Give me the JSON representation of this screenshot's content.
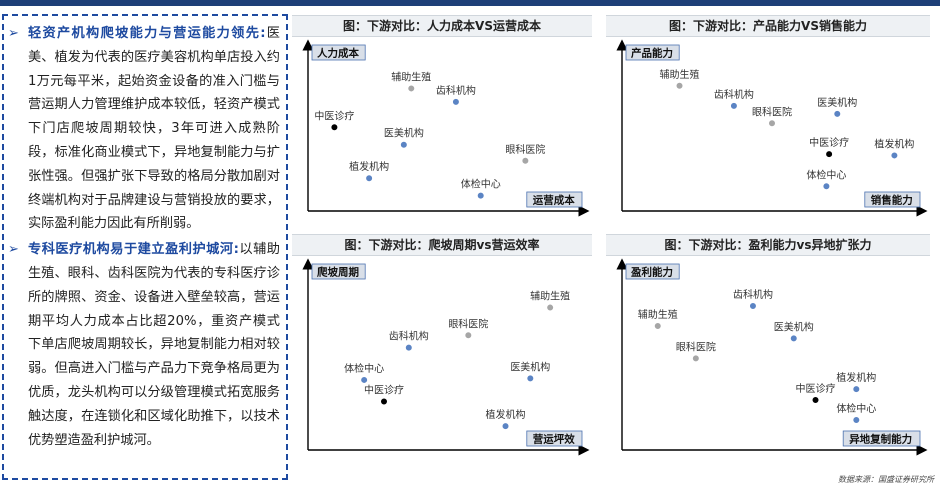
{
  "left": {
    "bullet_mark": "➢",
    "p1_lead": "轻资产机构爬坡能力与营运能力领先:",
    "p1_body": "医美、植发为代表的医疗美容机构单店投入约1万元每平米，起始资金设备的准入门槛与营运期人力管理维护成本较低，轻资产模式下门店爬坡周期较快，3年可进入成熟阶段，标准化商业模式下，异地复制能力与扩张性强。但强扩张下导致的格局分散加剧对终端机构对于品牌建设与营销投放的要求，实际盈利能力因此有所削弱。",
    "p2_lead": "专科医疗机构易于建立盈利护城河:",
    "p2_body": "以辅助生殖、眼科、齿科医院为代表的专科医疗诊所的牌照、资金、设备进入壁垒较高，营运期平均人力成本占比超20%，重资产模式下单店爬坡周期较长，异地复制能力相对较弱。但高进入门槛与产品力下竞争格局更为优质，龙头机构可以分级管理模式拓宽服务触达度，在连锁化和区域化助推下，以技术优势塑造盈利护城河。"
  },
  "source": "数据来源：国盛证券研究所",
  "colors": {
    "blue": "#5b84c4",
    "gray": "#a6a6a6",
    "black": "#000000",
    "tag_bg": "#d9dfe8",
    "tag_border": "#4c72b0"
  },
  "chart_data": [
    {
      "type": "scatter",
      "title": "图：下游对比：人力成本VS运营成本",
      "xlabel": "运营成本",
      "ylabel": "人力成本",
      "xlim": [
        0,
        100
      ],
      "ylim": [
        0,
        100
      ],
      "points": [
        {
          "label": "辅助生殖",
          "x": 36,
          "y": 84,
          "color": "gray"
        },
        {
          "label": "齿科机构",
          "x": 54,
          "y": 74,
          "color": "blue"
        },
        {
          "label": "中医诊疗",
          "x": 5,
          "y": 55,
          "color": "black"
        },
        {
          "label": "医美机构",
          "x": 33,
          "y": 42,
          "color": "blue"
        },
        {
          "label": "眼科医院",
          "x": 82,
          "y": 30,
          "color": "gray"
        },
        {
          "label": "植发机构",
          "x": 19,
          "y": 17,
          "color": "blue"
        },
        {
          "label": "体检中心",
          "x": 64,
          "y": 4,
          "color": "blue"
        }
      ]
    },
    {
      "type": "scatter",
      "title": "图：下游对比：产品能力VS销售能力",
      "xlabel": "销售能力",
      "ylabel": "产品能力",
      "xlim": [
        0,
        100
      ],
      "ylim": [
        0,
        100
      ],
      "points": [
        {
          "label": "辅助生殖",
          "x": 16,
          "y": 86,
          "color": "gray"
        },
        {
          "label": "齿科机构",
          "x": 36,
          "y": 71,
          "color": "blue"
        },
        {
          "label": "眼科医院",
          "x": 50,
          "y": 58,
          "color": "gray"
        },
        {
          "label": "医美机构",
          "x": 74,
          "y": 65,
          "color": "blue"
        },
        {
          "label": "中医诊疗",
          "x": 71,
          "y": 35,
          "color": "black"
        },
        {
          "label": "植发机构",
          "x": 95,
          "y": 34,
          "color": "blue"
        },
        {
          "label": "体检中心",
          "x": 70,
          "y": 11,
          "color": "blue"
        }
      ]
    },
    {
      "type": "scatter",
      "title": "图：下游对比：爬坡周期vs营运效率",
      "xlabel": "营运坪效",
      "ylabel": "爬坡周期",
      "xlim": [
        0,
        100
      ],
      "ylim": [
        0,
        100
      ],
      "points": [
        {
          "label": "辅助生殖",
          "x": 92,
          "y": 86,
          "color": "gray"
        },
        {
          "label": "眼科医院",
          "x": 59,
          "y": 68,
          "color": "gray"
        },
        {
          "label": "齿科机构",
          "x": 35,
          "y": 60,
          "color": "blue"
        },
        {
          "label": "体检中心",
          "x": 17,
          "y": 39,
          "color": "blue"
        },
        {
          "label": "医美机构",
          "x": 84,
          "y": 40,
          "color": "blue"
        },
        {
          "label": "中医诊疗",
          "x": 25,
          "y": 25,
          "color": "black"
        },
        {
          "label": "植发机构",
          "x": 74,
          "y": 9,
          "color": "blue"
        }
      ]
    },
    {
      "type": "scatter",
      "title": "图：下游对比：盈利能力vs异地扩张力",
      "xlabel": "异地复制能力",
      "ylabel": "盈利能力",
      "xlim": [
        0,
        100
      ],
      "ylim": [
        0,
        100
      ],
      "points": [
        {
          "label": "齿科机构",
          "x": 43,
          "y": 87,
          "color": "blue"
        },
        {
          "label": "辅助生殖",
          "x": 8,
          "y": 74,
          "color": "gray"
        },
        {
          "label": "医美机构",
          "x": 58,
          "y": 66,
          "color": "blue"
        },
        {
          "label": "眼科医院",
          "x": 22,
          "y": 53,
          "color": "gray"
        },
        {
          "label": "中医诊疗",
          "x": 66,
          "y": 26,
          "color": "black"
        },
        {
          "label": "植发机构",
          "x": 81,
          "y": 33,
          "color": "blue"
        },
        {
          "label": "体检中心",
          "x": 81,
          "y": 13,
          "color": "blue"
        }
      ]
    }
  ]
}
